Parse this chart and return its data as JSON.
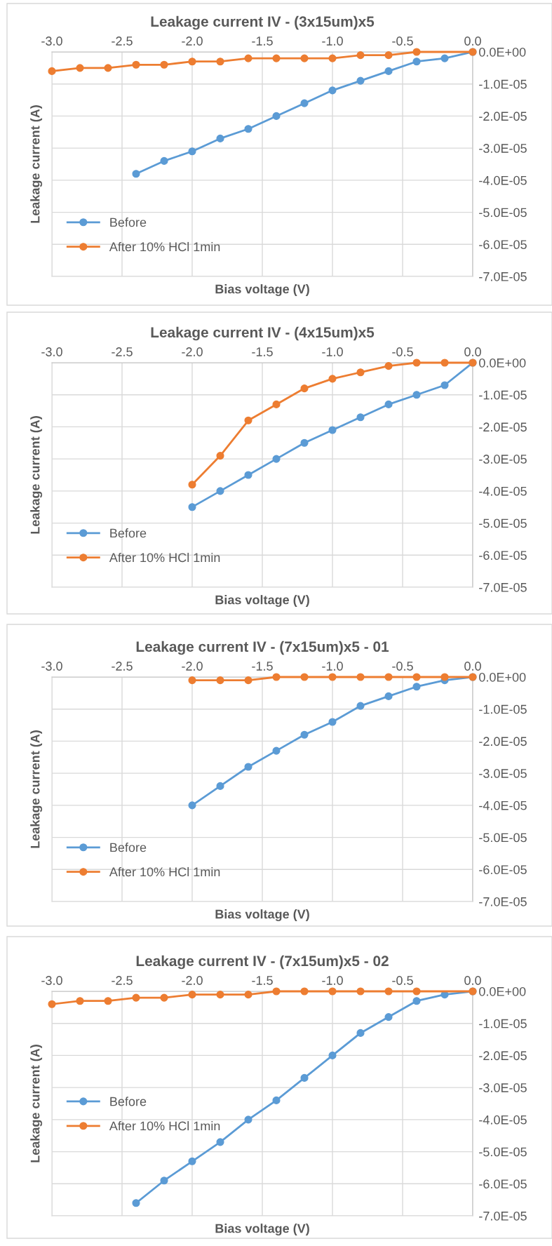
{
  "chart_data": [
    {
      "type": "line",
      "title": "Leakage current IV - (3x15um)x5",
      "xlabel": "Bias voltage (V)",
      "ylabel": "Leakage current (A)",
      "xlim": [
        -3.0,
        0.0
      ],
      "ylim": [
        -7e-05,
        0
      ],
      "xticks": [
        {
          "value": -3.0,
          "label": "-3.0"
        },
        {
          "value": -2.5,
          "label": "-2.5"
        },
        {
          "value": -2.0,
          "label": "-2.0"
        },
        {
          "value": -1.5,
          "label": "-1.5"
        },
        {
          "value": -1.0,
          "label": "-1.0"
        },
        {
          "value": -0.5,
          "label": "-0.5"
        },
        {
          "value": 0.0,
          "label": "0.0"
        }
      ],
      "yticks": [
        {
          "value": 0,
          "label": "0.0E+00"
        },
        {
          "value": -1e-05,
          "label": "-1.0E-05"
        },
        {
          "value": -2e-05,
          "label": "-2.0E-05"
        },
        {
          "value": -3e-05,
          "label": "-3.0E-05"
        },
        {
          "value": -4e-05,
          "label": "-4.0E-05"
        },
        {
          "value": -5e-05,
          "label": "-5.0E-05"
        },
        {
          "value": -6e-05,
          "label": "-6.0E-05"
        },
        {
          "value": -7e-05,
          "label": "-7.0E-05"
        }
      ],
      "grid": true,
      "legend": "bottom left",
      "marker": "circle",
      "line_style": "solid",
      "series": [
        {
          "name": "Before",
          "color": "#5b9bd5",
          "x": [
            -2.4,
            -2.2,
            -2.0,
            -1.8,
            -1.6,
            -1.4,
            -1.2,
            -1.0,
            -0.8,
            -0.6,
            -0.4,
            -0.2,
            0.0
          ],
          "values": [
            -3.8e-05,
            -3.4e-05,
            -3.1e-05,
            -2.7e-05,
            -2.4e-05,
            -2e-05,
            -1.6e-05,
            -1.2e-05,
            -9e-06,
            -6e-06,
            -3e-06,
            -2e-06,
            0
          ]
        },
        {
          "name": "After 10% HCl 1min",
          "color": "#ed7d31",
          "x": [
            -3.0,
            -2.8,
            -2.6,
            -2.4,
            -2.2,
            -2.0,
            -1.8,
            -1.6,
            -1.4,
            -1.2,
            -1.0,
            -0.8,
            -0.6,
            -0.4,
            0.0
          ],
          "values": [
            -6e-06,
            -5e-06,
            -5e-06,
            -4e-06,
            -4e-06,
            -3e-06,
            -3e-06,
            -2e-06,
            -2e-06,
            -2e-06,
            -2e-06,
            -1e-06,
            -1e-06,
            0,
            0
          ]
        }
      ]
    },
    {
      "type": "line",
      "title": "Leakage current IV - (4x15um)x5",
      "xlabel": "Bias voltage (V)",
      "ylabel": "Leakage current (A)",
      "xlim": [
        -3.0,
        0.0
      ],
      "ylim": [
        -7e-05,
        0
      ],
      "xticks": [
        {
          "value": -3.0,
          "label": "-3.0"
        },
        {
          "value": -2.5,
          "label": "-2.5"
        },
        {
          "value": -2.0,
          "label": "-2.0"
        },
        {
          "value": -1.5,
          "label": "-1.5"
        },
        {
          "value": -1.0,
          "label": "-1.0"
        },
        {
          "value": -0.5,
          "label": "-0.5"
        },
        {
          "value": 0.0,
          "label": "0.0"
        }
      ],
      "yticks": [
        {
          "value": 0,
          "label": "0.0E+00"
        },
        {
          "value": -1e-05,
          "label": "-1.0E-05"
        },
        {
          "value": -2e-05,
          "label": "-2.0E-05"
        },
        {
          "value": -3e-05,
          "label": "-3.0E-05"
        },
        {
          "value": -4e-05,
          "label": "-4.0E-05"
        },
        {
          "value": -5e-05,
          "label": "-5.0E-05"
        },
        {
          "value": -6e-05,
          "label": "-6.0E-05"
        },
        {
          "value": -7e-05,
          "label": "-7.0E-05"
        }
      ],
      "grid": true,
      "legend": "bottom left",
      "marker": "circle",
      "line_style": "solid",
      "series": [
        {
          "name": "Before",
          "color": "#5b9bd5",
          "x": [
            -2.0,
            -1.8,
            -1.6,
            -1.4,
            -1.2,
            -1.0,
            -0.8,
            -0.6,
            -0.4,
            -0.2,
            0.0
          ],
          "values": [
            -4.5e-05,
            -4e-05,
            -3.5e-05,
            -3e-05,
            -2.5e-05,
            -2.1e-05,
            -1.7e-05,
            -1.3e-05,
            -1e-05,
            -7e-06,
            0
          ]
        },
        {
          "name": "After 10% HCl 1min",
          "color": "#ed7d31",
          "x": [
            -2.0,
            -1.8,
            -1.6,
            -1.4,
            -1.2,
            -1.0,
            -0.8,
            -0.6,
            -0.4,
            -0.2,
            0.0
          ],
          "values": [
            -3.8e-05,
            -2.9e-05,
            -1.8e-05,
            -1.3e-05,
            -8e-06,
            -5e-06,
            -3e-06,
            -1e-06,
            0,
            0,
            0
          ]
        }
      ]
    },
    {
      "type": "line",
      "title": "Leakage current IV - (7x15um)x5 - 01",
      "xlabel": "Bias voltage (V)",
      "ylabel": "Leakage current (A)",
      "xlim": [
        -3.0,
        0.0
      ],
      "ylim": [
        -7e-05,
        0
      ],
      "xticks": [
        {
          "value": -3.0,
          "label": "-3.0"
        },
        {
          "value": -2.5,
          "label": "-2.5"
        },
        {
          "value": -2.0,
          "label": "-2.0"
        },
        {
          "value": -1.5,
          "label": "-1.5"
        },
        {
          "value": -1.0,
          "label": "-1.0"
        },
        {
          "value": -0.5,
          "label": "-0.5"
        },
        {
          "value": 0.0,
          "label": "0.0"
        }
      ],
      "yticks": [
        {
          "value": 0,
          "label": "0.0E+00"
        },
        {
          "value": -1e-05,
          "label": "-1.0E-05"
        },
        {
          "value": -2e-05,
          "label": "-2.0E-05"
        },
        {
          "value": -3e-05,
          "label": "-3.0E-05"
        },
        {
          "value": -4e-05,
          "label": "-4.0E-05"
        },
        {
          "value": -5e-05,
          "label": "-5.0E-05"
        },
        {
          "value": -6e-05,
          "label": "-6.0E-05"
        },
        {
          "value": -7e-05,
          "label": "-7.0E-05"
        }
      ],
      "grid": true,
      "legend": "bottom left",
      "marker": "circle",
      "line_style": "solid",
      "series": [
        {
          "name": "Before",
          "color": "#5b9bd5",
          "x": [
            -2.0,
            -1.8,
            -1.6,
            -1.4,
            -1.2,
            -1.0,
            -0.8,
            -0.6,
            -0.4,
            -0.2,
            0.0
          ],
          "values": [
            -4e-05,
            -3.4e-05,
            -2.8e-05,
            -2.3e-05,
            -1.8e-05,
            -1.4e-05,
            -9e-06,
            -6e-06,
            -3e-06,
            -1e-06,
            0
          ]
        },
        {
          "name": "After 10% HCl 1min",
          "color": "#ed7d31",
          "x": [
            -2.0,
            -1.8,
            -1.6,
            -1.4,
            -1.2,
            -1.0,
            -0.8,
            -0.6,
            -0.4,
            -0.2,
            0.0
          ],
          "values": [
            -1e-06,
            -1e-06,
            -1e-06,
            0,
            0,
            0,
            0,
            0,
            0,
            0,
            0
          ]
        }
      ]
    },
    {
      "type": "line",
      "title": "Leakage current IV - (7x15um)x5 - 02",
      "xlabel": "Bias voltage (V)",
      "ylabel": "Leakage current (A)",
      "xlim": [
        -3.0,
        0.0
      ],
      "ylim": [
        -7e-05,
        0
      ],
      "xticks": [
        {
          "value": -3.0,
          "label": "-3.0"
        },
        {
          "value": -2.5,
          "label": "-2.5"
        },
        {
          "value": -2.0,
          "label": "-2.0"
        },
        {
          "value": -1.5,
          "label": "-1.5"
        },
        {
          "value": -1.0,
          "label": "-1.0"
        },
        {
          "value": -0.5,
          "label": "-0.5"
        },
        {
          "value": 0.0,
          "label": "0.0"
        }
      ],
      "yticks": [
        {
          "value": 0,
          "label": "0.0E+00"
        },
        {
          "value": -1e-05,
          "label": "-1.0E-05"
        },
        {
          "value": -2e-05,
          "label": "-2.0E-05"
        },
        {
          "value": -3e-05,
          "label": "-3.0E-05"
        },
        {
          "value": -4e-05,
          "label": "-4.0E-05"
        },
        {
          "value": -5e-05,
          "label": "-5.0E-05"
        },
        {
          "value": -6e-05,
          "label": "-6.0E-05"
        },
        {
          "value": -7e-05,
          "label": "-7.0E-05"
        }
      ],
      "grid": true,
      "legend": "left",
      "marker": "circle",
      "line_style": "solid",
      "series": [
        {
          "name": "Before",
          "color": "#5b9bd5",
          "x": [
            -2.4,
            -2.2,
            -2.0,
            -1.8,
            -1.6,
            -1.4,
            -1.2,
            -1.0,
            -0.8,
            -0.6,
            -0.4,
            -0.2,
            0.0
          ],
          "values": [
            -6.6e-05,
            -5.9e-05,
            -5.3e-05,
            -4.7e-05,
            -4e-05,
            -3.4e-05,
            -2.7e-05,
            -2e-05,
            -1.3e-05,
            -8e-06,
            -3e-06,
            -1e-06,
            0
          ]
        },
        {
          "name": "After 10% HCl 1min",
          "color": "#ed7d31",
          "x": [
            -3.0,
            -2.8,
            -2.6,
            -2.4,
            -2.2,
            -2.0,
            -1.8,
            -1.6,
            -1.4,
            -1.2,
            -1.0,
            -0.8,
            -0.6,
            -0.4,
            0.0
          ],
          "values": [
            -4e-06,
            -3e-06,
            -3e-06,
            -2e-06,
            -2e-06,
            -1e-06,
            -1e-06,
            -1e-06,
            0,
            0,
            0,
            0,
            0,
            0,
            0
          ]
        }
      ]
    }
  ]
}
